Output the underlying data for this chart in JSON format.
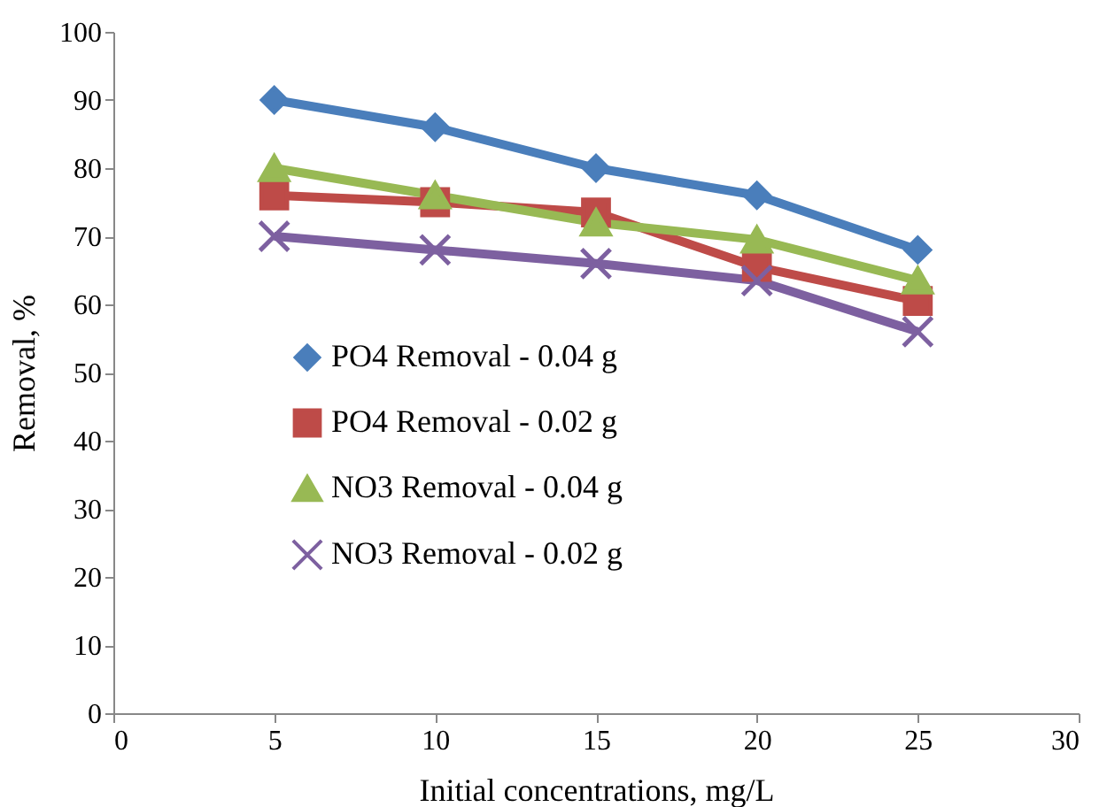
{
  "chart_data": {
    "type": "line",
    "xlabel": "Initial  concentrations, mg/L",
    "ylabel": "Removal, %",
    "x": [
      5,
      10,
      15,
      20,
      25
    ],
    "series": [
      {
        "name": "PO4 Removal - 0.04 g",
        "color": "#4a7ebb",
        "marker": "diamond",
        "values": [
          90,
          86,
          80,
          76,
          68
        ]
      },
      {
        "name": "PO4 Removal - 0.02 g",
        "color": "#be4b48",
        "marker": "square",
        "values": [
          76,
          75,
          73.5,
          65.5,
          60.5
        ]
      },
      {
        "name": "NO3 Removal - 0.04 g",
        "color": "#98b954",
        "marker": "triangle",
        "values": [
          80,
          76,
          72,
          69.5,
          63.5
        ]
      },
      {
        "name": "NO3 Removal - 0.02 g",
        "color": "#7d60a0",
        "marker": "cross",
        "values": [
          70,
          68,
          66,
          63.5,
          56
        ]
      }
    ],
    "xlim": [
      0,
      30
    ],
    "xticks": [
      0,
      5,
      10,
      15,
      20,
      25,
      30
    ],
    "ylim": [
      0,
      100
    ],
    "yticks": [
      0,
      10,
      20,
      30,
      40,
      50,
      60,
      70,
      80,
      90,
      100
    ],
    "grid": false,
    "legend": "bottom left",
    "line_style": "solid"
  }
}
